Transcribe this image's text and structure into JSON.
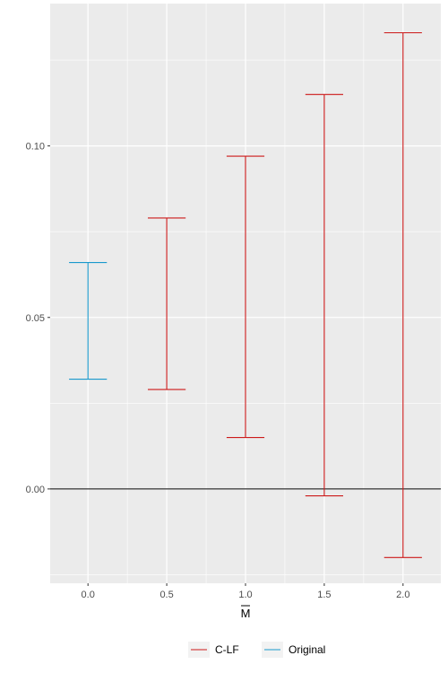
{
  "chart_data": {
    "type": "errorbar",
    "x_ticks": [
      "0.0",
      "0.5",
      "1.0",
      "1.5",
      "2.0"
    ],
    "y_ticks": [
      "0.00",
      "0.05",
      "0.10"
    ],
    "xlabel": "M",
    "xlabel_overline": true,
    "ylabel": "",
    "xlim": [
      -0.24,
      2.24
    ],
    "ylim": [
      -0.0275,
      0.1415
    ],
    "reference_line_y": 0,
    "grid": true,
    "legend_position": "bottom",
    "series": [
      {
        "name": "C-LF",
        "color": "#cc1a1a",
        "points": [
          {
            "x": 0.5,
            "lower": 0.029,
            "upper": 0.079
          },
          {
            "x": 1.0,
            "lower": 0.015,
            "upper": 0.097
          },
          {
            "x": 1.5,
            "lower": -0.002,
            "upper": 0.115
          },
          {
            "x": 2.0,
            "lower": -0.02,
            "upper": 0.133
          }
        ]
      },
      {
        "name": "Original",
        "color": "#1a99cc",
        "points": [
          {
            "x": 0.0,
            "lower": 0.032,
            "upper": 0.066
          }
        ]
      }
    ]
  }
}
